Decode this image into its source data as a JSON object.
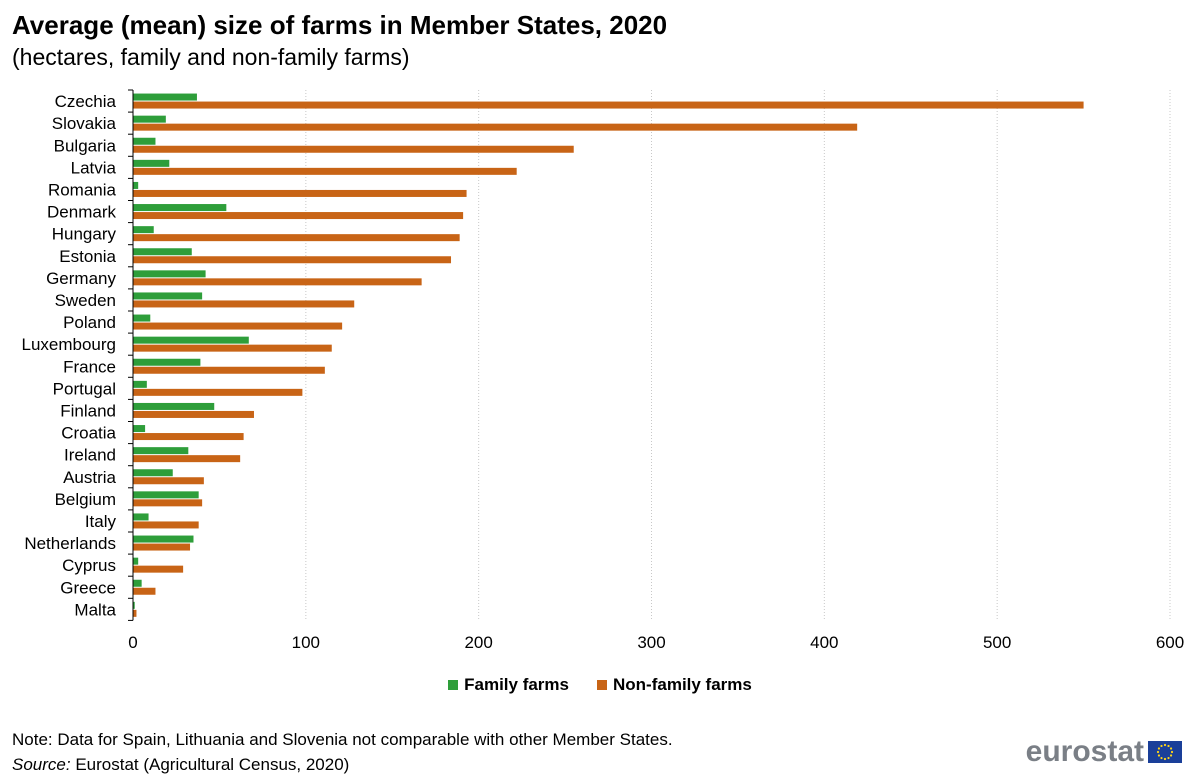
{
  "title": "Average (mean) size of farms in Member States, 2020",
  "subtitle": "(hectares, family and non-family farms)",
  "note": "Note: Data for Spain, Lithuania and Slovenia not comparable with other Member States.",
  "source_label": "Source:",
  "source_text": " Eurostat (Agricultural Census, 2020)",
  "logo_text": "eurostat",
  "colors": {
    "family": "#2e9e3a",
    "non_family": "#c86416",
    "grid": "#c8c8c8"
  },
  "chart_data": {
    "type": "bar",
    "orientation": "horizontal",
    "categories": [
      "Czechia",
      "Slovakia",
      "Bulgaria",
      "Latvia",
      "Romania",
      "Denmark",
      "Hungary",
      "Estonia",
      "Germany",
      "Sweden",
      "Poland",
      "Luxembourg",
      "France",
      "Portugal",
      "Finland",
      "Croatia",
      "Ireland",
      "Austria",
      "Belgium",
      "Italy",
      "Netherlands",
      "Cyprus",
      "Greece",
      "Malta"
    ],
    "series": [
      {
        "name": "Family farms",
        "values": [
          37,
          19,
          13,
          21,
          3,
          54,
          12,
          34,
          42,
          40,
          10,
          67,
          39,
          8,
          47,
          7,
          32,
          23,
          38,
          9,
          35,
          3,
          5,
          1
        ]
      },
      {
        "name": "Non-family farms",
        "values": [
          550,
          419,
          255,
          222,
          193,
          191,
          189,
          184,
          167,
          128,
          121,
          115,
          111,
          98,
          70,
          64,
          62,
          41,
          40,
          38,
          33,
          29,
          13,
          2
        ]
      }
    ],
    "xlim": [
      0,
      600
    ],
    "xticks": [
      0,
      100,
      200,
      300,
      400,
      500,
      600
    ],
    "grid": "vertical-dotted",
    "legend_position": "bottom-center"
  }
}
